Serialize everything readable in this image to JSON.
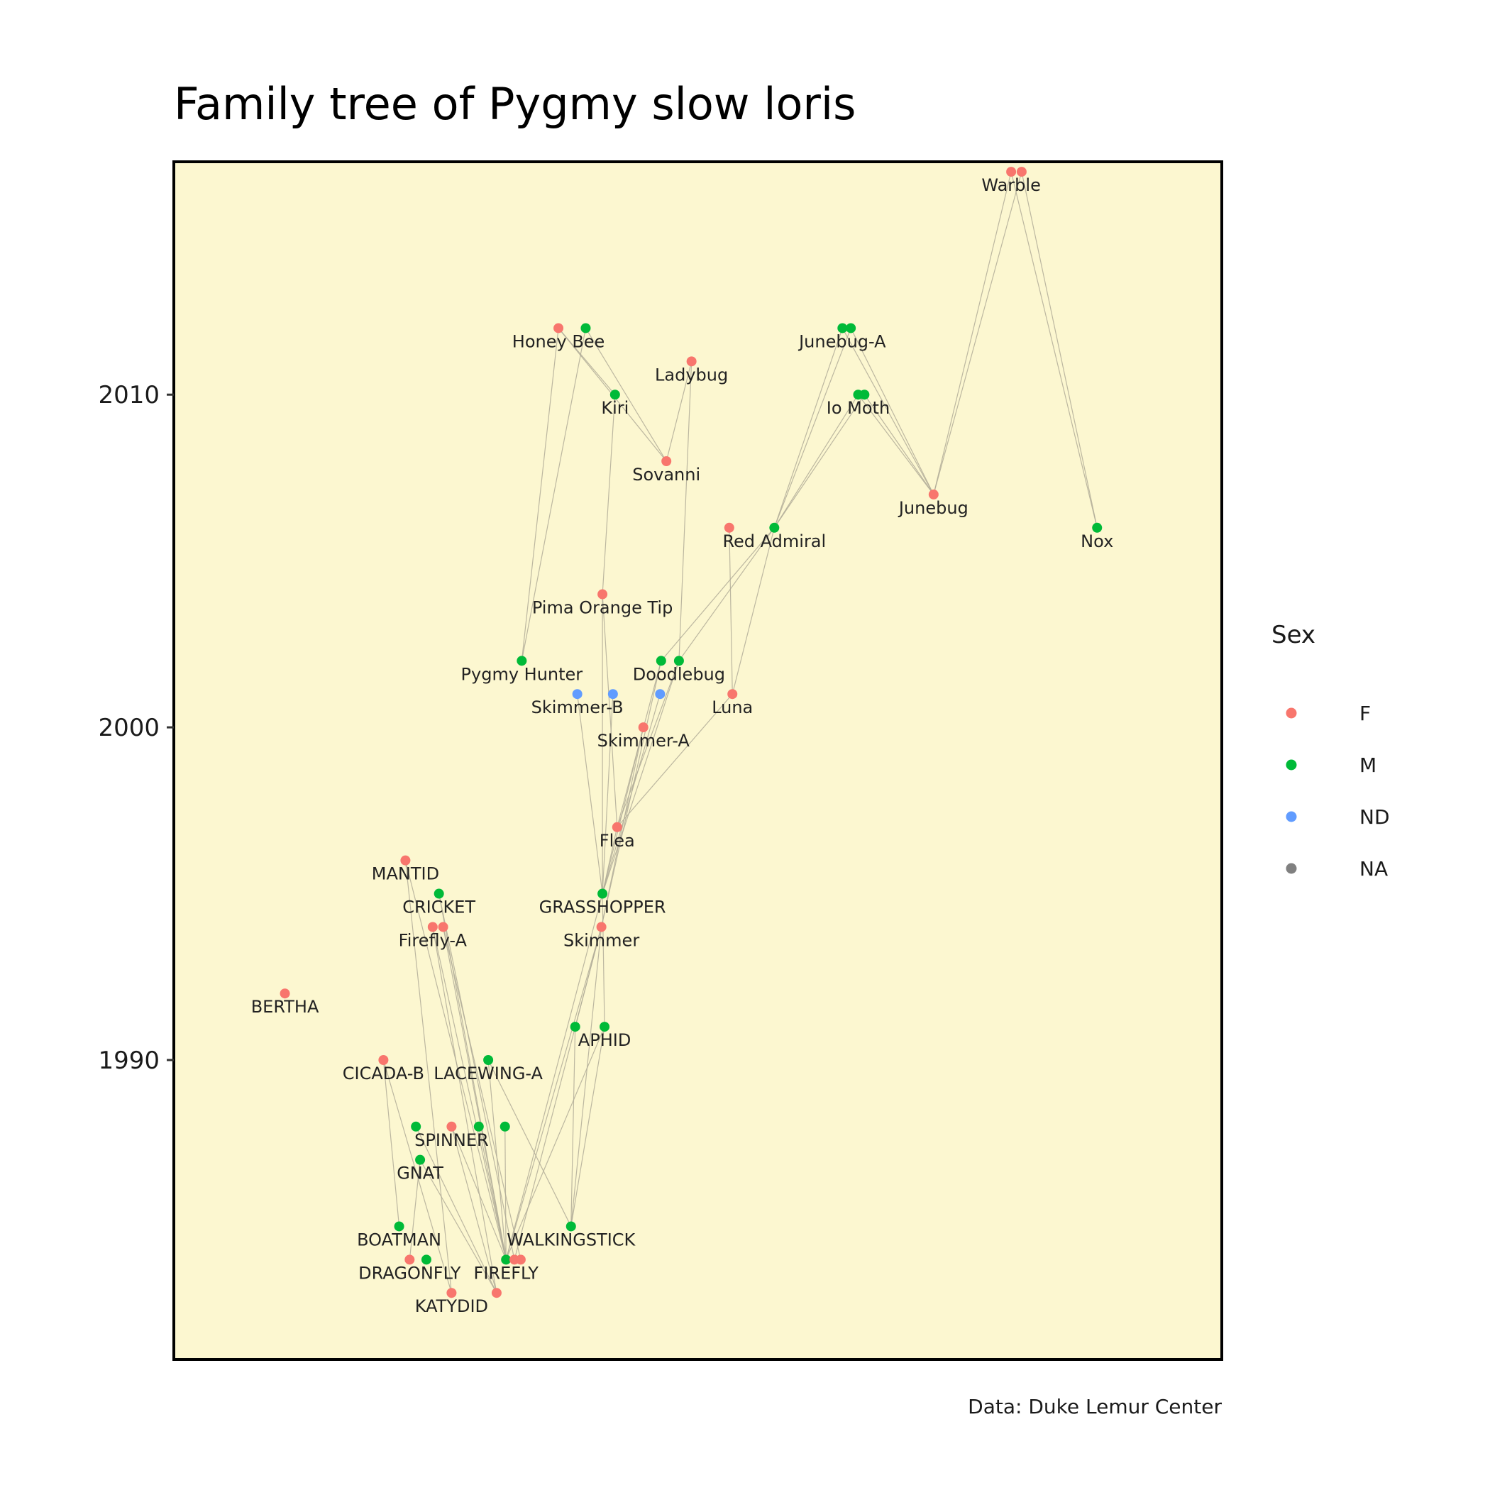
{
  "chart_data": {
    "type": "scatter",
    "title": "Family tree of Pygmy slow loris",
    "caption": "Data: Duke Lemur Center",
    "ylabel": "",
    "xlabel": "",
    "y_ticks": [
      1990,
      2000,
      2010
    ],
    "ylim": [
      1981,
      2017
    ],
    "xlim": [
      0,
      1
    ],
    "grid": false,
    "x_axis_visible": false,
    "panel_background": "#fcf7d0",
    "legend": {
      "title": "Sex",
      "position": "right",
      "entries": [
        {
          "label": "F",
          "color": "#f8766d"
        },
        {
          "label": "M",
          "color": "#00ba38"
        },
        {
          "label": "ND",
          "color": "#619cff"
        },
        {
          "label": "NA",
          "color": "#808080"
        }
      ]
    },
    "sex_colors": {
      "F": "#f8766d",
      "M": "#00ba38",
      "ND": "#619cff",
      "NA": "#808080"
    },
    "nodes": [
      {
        "id": "warble1",
        "x": 0.799,
        "y": 2016.7,
        "sex": "F",
        "label": "Warble"
      },
      {
        "id": "warble2",
        "x": 0.809,
        "y": 2016.7,
        "sex": "F",
        "label": ""
      },
      {
        "id": "honeybee",
        "x": 0.367,
        "y": 2012.0,
        "sex": "F",
        "label": "Honey Bee"
      },
      {
        "id": "hb_m",
        "x": 0.393,
        "y": 2012.0,
        "sex": "M",
        "label": ""
      },
      {
        "id": "junebugA1",
        "x": 0.638,
        "y": 2012.0,
        "sex": "M",
        "label": "Junebug-A"
      },
      {
        "id": "junebugA2",
        "x": 0.646,
        "y": 2012.0,
        "sex": "M",
        "label": ""
      },
      {
        "id": "ladybug",
        "x": 0.494,
        "y": 2011.0,
        "sex": "F",
        "label": "Ladybug"
      },
      {
        "id": "kiri",
        "x": 0.421,
        "y": 2010.0,
        "sex": "M",
        "label": "Kiri"
      },
      {
        "id": "iomoth1",
        "x": 0.653,
        "y": 2010.0,
        "sex": "M",
        "label": "Io Moth"
      },
      {
        "id": "iomoth2",
        "x": 0.659,
        "y": 2010.0,
        "sex": "M",
        "label": ""
      },
      {
        "id": "sovanni",
        "x": 0.47,
        "y": 2008.0,
        "sex": "F",
        "label": "Sovanni"
      },
      {
        "id": "junebug",
        "x": 0.725,
        "y": 2007.0,
        "sex": "F",
        "label": "Junebug"
      },
      {
        "id": "redadm_f",
        "x": 0.53,
        "y": 2006.0,
        "sex": "F",
        "label": ""
      },
      {
        "id": "redadmiral",
        "x": 0.573,
        "y": 2006.0,
        "sex": "M",
        "label": "Red Admiral"
      },
      {
        "id": "nox",
        "x": 0.881,
        "y": 2006.0,
        "sex": "M",
        "label": "Nox"
      },
      {
        "id": "pima",
        "x": 0.409,
        "y": 2004.0,
        "sex": "F",
        "label": "Pima Orange Tip"
      },
      {
        "id": "pygmyhunter",
        "x": 0.332,
        "y": 2002.0,
        "sex": "M",
        "label": "Pygmy Hunter"
      },
      {
        "id": "doodle_m1",
        "x": 0.465,
        "y": 2002.0,
        "sex": "M",
        "label": ""
      },
      {
        "id": "doodlebug",
        "x": 0.482,
        "y": 2002.0,
        "sex": "M",
        "label": "Doodlebug"
      },
      {
        "id": "skimmerB",
        "x": 0.385,
        "y": 2001.0,
        "sex": "ND",
        "label": "Skimmer-B"
      },
      {
        "id": "skB2",
        "x": 0.419,
        "y": 2001.0,
        "sex": "ND",
        "label": ""
      },
      {
        "id": "skB3",
        "x": 0.464,
        "y": 2001.0,
        "sex": "ND",
        "label": ""
      },
      {
        "id": "luna",
        "x": 0.533,
        "y": 2001.0,
        "sex": "F",
        "label": "Luna"
      },
      {
        "id": "skimmerA",
        "x": 0.448,
        "y": 2000.0,
        "sex": "F",
        "label": "Skimmer-A"
      },
      {
        "id": "flea",
        "x": 0.423,
        "y": 1997.0,
        "sex": "F",
        "label": "Flea"
      },
      {
        "id": "mantid",
        "x": 0.221,
        "y": 1996.0,
        "sex": "F",
        "label": "MANTID"
      },
      {
        "id": "cricket",
        "x": 0.253,
        "y": 1995.0,
        "sex": "M",
        "label": "CRICKET"
      },
      {
        "id": "grasshopper",
        "x": 0.409,
        "y": 1995.0,
        "sex": "M",
        "label": "GRASSHOPPER"
      },
      {
        "id": "fireflyA1",
        "x": 0.247,
        "y": 1994.0,
        "sex": "F",
        "label": "Firefly-A"
      },
      {
        "id": "fireflyA2",
        "x": 0.257,
        "y": 1994.0,
        "sex": "F",
        "label": ""
      },
      {
        "id": "skimmer",
        "x": 0.408,
        "y": 1994.0,
        "sex": "F",
        "label": "Skimmer"
      },
      {
        "id": "bertha",
        "x": 0.106,
        "y": 1992.0,
        "sex": "F",
        "label": "BERTHA"
      },
      {
        "id": "aphid_m",
        "x": 0.383,
        "y": 1991.0,
        "sex": "M",
        "label": ""
      },
      {
        "id": "aphid",
        "x": 0.411,
        "y": 1991.0,
        "sex": "M",
        "label": "APHID"
      },
      {
        "id": "cicadaB",
        "x": 0.2,
        "y": 1990.0,
        "sex": "F",
        "label": "CICADA-B"
      },
      {
        "id": "lacewingA",
        "x": 0.3,
        "y": 1990.0,
        "sex": "M",
        "label": "LACEWING-A"
      },
      {
        "id": "sp_m1",
        "x": 0.231,
        "y": 1988.0,
        "sex": "M",
        "label": ""
      },
      {
        "id": "spinner",
        "x": 0.265,
        "y": 1988.0,
        "sex": "F",
        "label": "SPINNER"
      },
      {
        "id": "sp_m2",
        "x": 0.291,
        "y": 1988.0,
        "sex": "M",
        "label": ""
      },
      {
        "id": "sp_m3",
        "x": 0.316,
        "y": 1988.0,
        "sex": "M",
        "label": ""
      },
      {
        "id": "gnat",
        "x": 0.235,
        "y": 1987.0,
        "sex": "M",
        "label": "GNAT"
      },
      {
        "id": "boatman",
        "x": 0.215,
        "y": 1985.0,
        "sex": "M",
        "label": "BOATMAN"
      },
      {
        "id": "walkingstick",
        "x": 0.379,
        "y": 1985.0,
        "sex": "M",
        "label": "WALKINGSTICK"
      },
      {
        "id": "dragonfly",
        "x": 0.225,
        "y": 1984.0,
        "sex": "F",
        "label": "DRAGONFLY"
      },
      {
        "id": "df_m",
        "x": 0.241,
        "y": 1984.0,
        "sex": "M",
        "label": ""
      },
      {
        "id": "firefly",
        "x": 0.317,
        "y": 1984.0,
        "sex": "M",
        "label": "FIREFLY"
      },
      {
        "id": "ff_f1",
        "x": 0.325,
        "y": 1984.0,
        "sex": "F",
        "label": ""
      },
      {
        "id": "ff_f2",
        "x": 0.331,
        "y": 1984.0,
        "sex": "F",
        "label": ""
      },
      {
        "id": "katydid",
        "x": 0.265,
        "y": 1983.0,
        "sex": "F",
        "label": "KATYDID"
      },
      {
        "id": "kd_f",
        "x": 0.308,
        "y": 1983.0,
        "sex": "F",
        "label": ""
      }
    ],
    "edges": [
      [
        "warble1",
        "junebug"
      ],
      [
        "warble2",
        "junebug"
      ],
      [
        "warble1",
        "nox"
      ],
      [
        "warble2",
        "nox"
      ],
      [
        "junebugA1",
        "junebug"
      ],
      [
        "junebugA2",
        "junebug"
      ],
      [
        "iomoth1",
        "junebug"
      ],
      [
        "iomoth2",
        "junebug"
      ],
      [
        "junebugA1",
        "redadmiral"
      ],
      [
        "junebugA2",
        "redadmiral"
      ],
      [
        "iomoth1",
        "redadmiral"
      ],
      [
        "iomoth2",
        "redadmiral"
      ],
      [
        "honeybee",
        "kiri"
      ],
      [
        "honeybee",
        "sovanni"
      ],
      [
        "hb_m",
        "sovanni"
      ],
      [
        "ladybug",
        "sovanni"
      ],
      [
        "honeybee",
        "pygmyhunter"
      ],
      [
        "hb_m",
        "pygmyhunter"
      ],
      [
        "kiri",
        "pima"
      ],
      [
        "ladybug",
        "doodlebug"
      ],
      [
        "redadmiral",
        "doodlebug"
      ],
      [
        "redadmiral",
        "doodle_m1"
      ],
      [
        "redadm_f",
        "luna"
      ],
      [
        "redadmiral",
        "luna"
      ],
      [
        "pima",
        "flea"
      ],
      [
        "pima",
        "grasshopper"
      ],
      [
        "doodlebug",
        "flea"
      ],
      [
        "doodle_m1",
        "flea"
      ],
      [
        "luna",
        "flea"
      ],
      [
        "skimmerB",
        "grasshopper"
      ],
      [
        "skB2",
        "grasshopper"
      ],
      [
        "skB3",
        "grasshopper"
      ],
      [
        "skimmerA",
        "grasshopper"
      ],
      [
        "flea",
        "grasshopper"
      ],
      [
        "doodlebug",
        "grasshopper"
      ],
      [
        "skimmerA",
        "skimmer"
      ],
      [
        "doodle_m1",
        "skimmer"
      ],
      [
        "grasshopper",
        "aphid"
      ],
      [
        "skimmer",
        "aphid_m"
      ],
      [
        "skimmer",
        "walkingstick"
      ],
      [
        "mantid",
        "firefly"
      ],
      [
        "mantid",
        "katydid"
      ],
      [
        "cricket",
        "firefly"
      ],
      [
        "cricket",
        "ff_f1"
      ],
      [
        "fireflyA1",
        "firefly"
      ],
      [
        "fireflyA1",
        "kd_f"
      ],
      [
        "fireflyA2",
        "ff_f2"
      ],
      [
        "fireflyA2",
        "firefly"
      ],
      [
        "cicadaB",
        "boatman"
      ],
      [
        "cicadaB",
        "katydid"
      ],
      [
        "lacewingA",
        "walkingstick"
      ],
      [
        "lacewingA",
        "firefly"
      ],
      [
        "spinner",
        "firefly"
      ],
      [
        "spinner",
        "kd_f"
      ],
      [
        "sp_m1",
        "kd_f"
      ],
      [
        "sp_m2",
        "firefly"
      ],
      [
        "sp_m3",
        "firefly"
      ],
      [
        "gnat",
        "kd_f"
      ],
      [
        "gnat",
        "dragonfly"
      ],
      [
        "aphid",
        "firefly"
      ],
      [
        "aphid_m",
        "walkingstick"
      ],
      [
        "aphid",
        "walkingstick"
      ],
      [
        "skimmer",
        "firefly"
      ],
      [
        "skimmer",
        "ff_f1"
      ],
      [
        "grasshopper",
        "firefly"
      ]
    ]
  }
}
